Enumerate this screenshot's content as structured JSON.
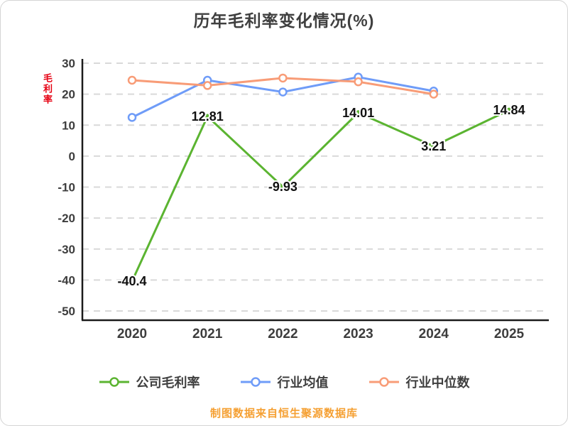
{
  "chart_data": {
    "type": "line",
    "title": "历年毛利率变化情况(%)",
    "y_axis_side_label": "毛利率",
    "categories": [
      "2020",
      "2021",
      "2022",
      "2023",
      "2024",
      "2025"
    ],
    "ylim": [
      -50,
      30
    ],
    "ytick_step": 10,
    "grid": true,
    "legend_position": "bottom",
    "series": [
      {
        "name": "公司毛利率",
        "color": "#5bb431",
        "values": [
          -40.4,
          12.81,
          -9.93,
          14.01,
          3.21,
          14.84
        ],
        "show_labels": true
      },
      {
        "name": "行业均值",
        "color": "#6f9cf8",
        "values": [
          12.5,
          24.5,
          20.7,
          25.5,
          21.0,
          null
        ],
        "show_labels": false
      },
      {
        "name": "行业中位数",
        "color": "#f89c77",
        "values": [
          24.5,
          22.8,
          25.2,
          24.0,
          20.0,
          null
        ],
        "show_labels": false
      }
    ],
    "footer": "制图数据来自恒生聚源数据库"
  },
  "colors": {
    "title": "#3f3f3f",
    "axis": "#1a1a1a",
    "grid": "#d9d9d9",
    "tick": "#3d3d3d",
    "data_label": "#111111",
    "footer": "#f5a033",
    "side_label": "#e60012"
  }
}
